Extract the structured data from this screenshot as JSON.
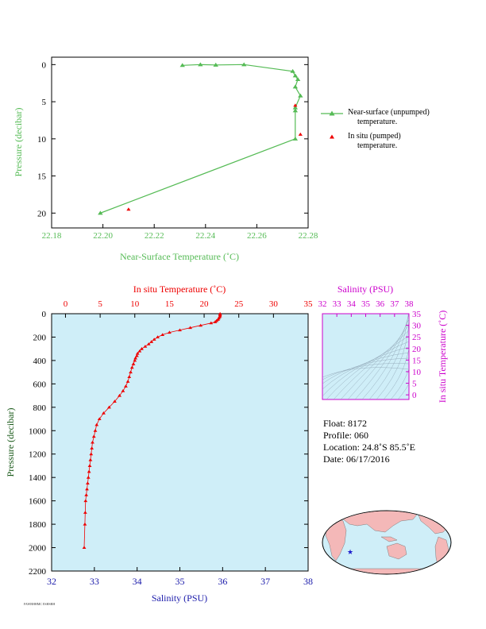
{
  "chart_data": [
    {
      "type": "line",
      "xlabel": "Near-Surface Temperature (˚C)",
      "ylabel": "Pressure (decibar)",
      "xlim": [
        22.18,
        22.28
      ],
      "ylim": [
        22,
        -1
      ],
      "xticks": [
        "22.18",
        "22.20",
        "22.22",
        "22.24",
        "22.26",
        "22.28"
      ],
      "yticks": [
        "0",
        "5",
        "10",
        "15",
        "20"
      ],
      "colors": {
        "near_surface": "#55bb55",
        "in_situ": "#ee0000",
        "axis_text": "#55bb55"
      },
      "series": [
        {
          "name": "Near-surface (unpumped) temperature.",
          "x": [
            22.231,
            22.238,
            22.244,
            22.255,
            22.274,
            22.275,
            22.276,
            22.275,
            22.277,
            22.275,
            22.275,
            22.275,
            22.199
          ],
          "y": [
            0.1,
            0.0,
            0.05,
            0.0,
            0.9,
            1.5,
            2.0,
            3.0,
            4.2,
            5.8,
            6.2,
            10.0,
            20.0
          ]
        },
        {
          "name": "In situ (pumped) temperature.",
          "x": [
            22.275,
            22.277,
            22.21
          ],
          "y": [
            5.5,
            9.4,
            19.5
          ]
        }
      ],
      "legend": [
        {
          "line1": "Near-surface (unpumped)",
          "line2": "temperature."
        },
        {
          "line1": "In situ (pumped)",
          "line2": "temperature."
        }
      ]
    },
    {
      "type": "line",
      "title": "In situ Temperature (˚C)",
      "xlabel": "Salinity (PSU)",
      "ylabel": "Pressure (decibar)",
      "temperature_range": [
        -2,
        35
      ],
      "salinity_range": [
        32,
        38
      ],
      "ylim": [
        2200,
        0
      ],
      "temperature_ticks": [
        "0",
        "5",
        "10",
        "15",
        "20",
        "25",
        "30",
        "35"
      ],
      "salinity_ticks": [
        "32",
        "33",
        "34",
        "35",
        "36",
        "37",
        "38"
      ],
      "yticks": [
        "0",
        "200",
        "400",
        "600",
        "800",
        "1000",
        "1200",
        "1400",
        "1600",
        "1800",
        "2000",
        "2200"
      ],
      "colors": {
        "plot_bg": "#cfeef8",
        "temperature": "#ee0000",
        "salinity_axis": "#1a1aaa"
      },
      "series": [
        {
          "name": "In situ Temperature",
          "temperature": [
            22.3,
            22.3,
            22.3,
            22.2,
            22.1,
            22.0,
            21.8,
            21.6,
            21.0,
            19.5,
            18.0,
            16.5,
            15.0,
            14.0,
            13.3,
            12.8,
            12.4,
            12.0,
            11.5,
            11.0,
            10.7,
            10.4,
            10.3,
            10.1,
            10.0,
            9.8,
            9.6,
            9.4,
            9.2,
            9.0,
            8.7,
            8.3,
            7.8,
            7.1,
            6.3,
            5.5,
            4.9,
            4.5,
            4.3,
            4.1,
            3.9,
            3.8,
            3.7,
            3.6,
            3.5,
            3.4,
            3.3,
            3.2,
            3.1,
            3.0,
            2.9,
            2.85,
            2.8,
            2.7
          ],
          "pressure": [
            0,
            10,
            20,
            30,
            40,
            50,
            60,
            70,
            80,
            100,
            120,
            140,
            160,
            180,
            200,
            220,
            240,
            260,
            280,
            300,
            320,
            340,
            360,
            380,
            400,
            430,
            460,
            500,
            540,
            580,
            620,
            660,
            700,
            750,
            800,
            850,
            900,
            950,
            1000,
            1050,
            1100,
            1150,
            1200,
            1250,
            1300,
            1350,
            1400,
            1450,
            1500,
            1550,
            1600,
            1700,
            1800,
            2000
          ]
        }
      ]
    },
    {
      "type": "scatter",
      "title": "Salinity (PSU)",
      "xlabel": "Salinity (PSU)",
      "ylabel": "In situ Temperature (˚C)",
      "xlim": [
        32,
        38
      ],
      "ylim": [
        -2,
        35
      ],
      "xticks": [
        "32",
        "33",
        "34",
        "35",
        "36",
        "37",
        "38"
      ],
      "yticks": [
        "0",
        "5",
        "10",
        "15",
        "20",
        "25",
        "30",
        "35"
      ],
      "colors": {
        "axis": "#cc00cc",
        "isopycnals": "#8aa0b0"
      }
    }
  ],
  "float_info": {
    "float": "Float:  8172",
    "profile": "Profile:  060",
    "location": "Location:  24.8˚S  85.5˚E",
    "date": "Date:  06/17/2016"
  },
  "map": {
    "ocean_color": "#cfeef8",
    "land_color": "#f4b8b8",
    "marker_color": "#1a1acc",
    "marker_lat": -24.8,
    "marker_lon": 85.5
  },
  "footer": {
    "text": "FAWBHHMC ESHSRH"
  }
}
